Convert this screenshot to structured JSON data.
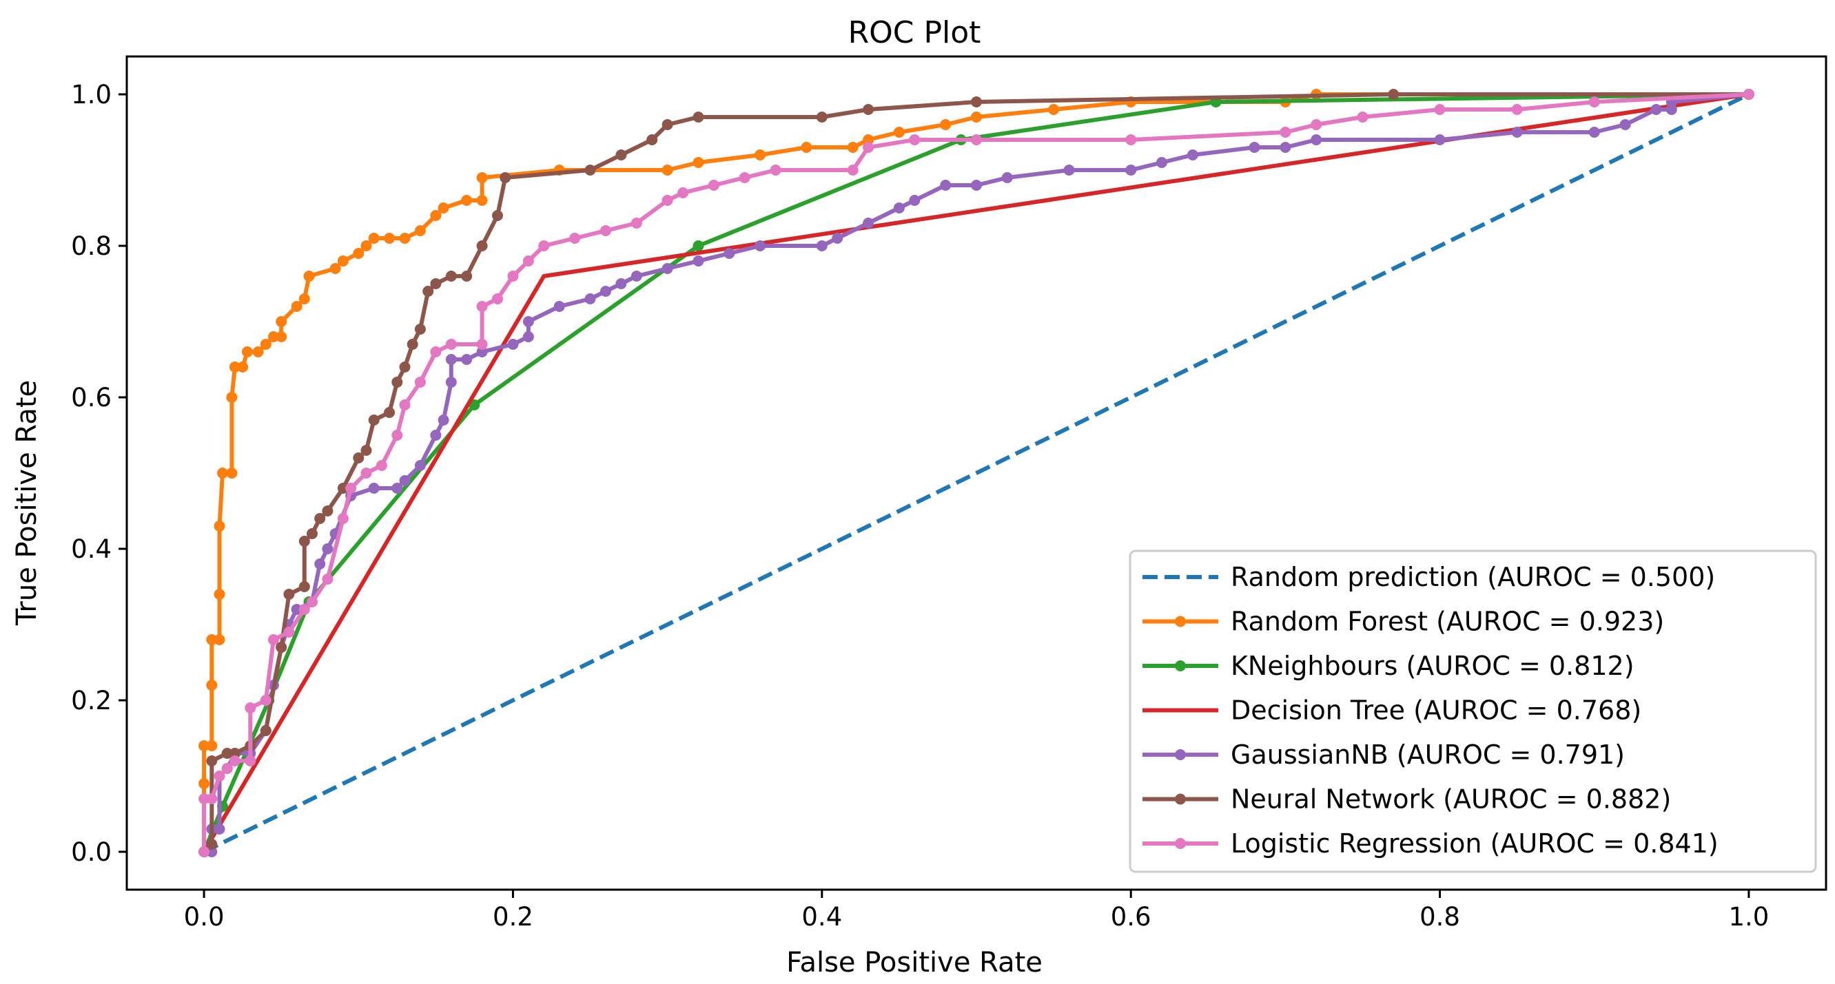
{
  "chart_data": {
    "type": "line",
    "title": "ROC Plot",
    "xlabel": "False Positive Rate",
    "ylabel": "True Positive Rate",
    "xlim": [
      -0.05,
      1.05
    ],
    "ylim": [
      -0.05,
      1.05
    ],
    "xticks": [
      "0.0",
      "0.2",
      "0.4",
      "0.6",
      "0.8",
      "1.0"
    ],
    "yticks": [
      "0.0",
      "0.2",
      "0.4",
      "0.6",
      "0.8",
      "1.0"
    ],
    "legend_position": "bottom-right",
    "series": [
      {
        "name": "Random prediction (AUROC = 0.500)",
        "color": "#1f77b4",
        "dashed": true,
        "markers": false,
        "points": [
          [
            0,
            0
          ],
          [
            1,
            1
          ]
        ]
      },
      {
        "name": "Random Forest (AUROC = 0.923)",
        "color": "#ff7f0e",
        "dashed": false,
        "markers": true,
        "points": [
          [
            0,
            0
          ],
          [
            0,
            0.09
          ],
          [
            0,
            0.14
          ],
          [
            0.005,
            0.14
          ],
          [
            0.005,
            0.22
          ],
          [
            0.005,
            0.28
          ],
          [
            0.01,
            0.28
          ],
          [
            0.01,
            0.34
          ],
          [
            0.01,
            0.43
          ],
          [
            0.012,
            0.5
          ],
          [
            0.018,
            0.5
          ],
          [
            0.018,
            0.6
          ],
          [
            0.02,
            0.64
          ],
          [
            0.025,
            0.64
          ],
          [
            0.028,
            0.66
          ],
          [
            0.035,
            0.66
          ],
          [
            0.04,
            0.67
          ],
          [
            0.045,
            0.68
          ],
          [
            0.05,
            0.68
          ],
          [
            0.05,
            0.7
          ],
          [
            0.06,
            0.72
          ],
          [
            0.065,
            0.73
          ],
          [
            0.068,
            0.76
          ],
          [
            0.085,
            0.77
          ],
          [
            0.09,
            0.78
          ],
          [
            0.1,
            0.79
          ],
          [
            0.105,
            0.8
          ],
          [
            0.11,
            0.81
          ],
          [
            0.12,
            0.81
          ],
          [
            0.13,
            0.81
          ],
          [
            0.14,
            0.82
          ],
          [
            0.15,
            0.84
          ],
          [
            0.155,
            0.85
          ],
          [
            0.17,
            0.86
          ],
          [
            0.18,
            0.86
          ],
          [
            0.18,
            0.89
          ],
          [
            0.23,
            0.9
          ],
          [
            0.3,
            0.9
          ],
          [
            0.32,
            0.91
          ],
          [
            0.36,
            0.92
          ],
          [
            0.39,
            0.93
          ],
          [
            0.42,
            0.93
          ],
          [
            0.43,
            0.94
          ],
          [
            0.45,
            0.95
          ],
          [
            0.48,
            0.96
          ],
          [
            0.5,
            0.97
          ],
          [
            0.55,
            0.98
          ],
          [
            0.6,
            0.99
          ],
          [
            0.7,
            0.99
          ],
          [
            0.72,
            1.0
          ],
          [
            1.0,
            1.0
          ]
        ]
      },
      {
        "name": "KNeighbours (AUROC = 0.812)",
        "color": "#2ca02c",
        "dashed": false,
        "markers": true,
        "points": [
          [
            0,
            0
          ],
          [
            0.012,
            0.06
          ],
          [
            0.042,
            0.2
          ],
          [
            0.068,
            0.33
          ],
          [
            0.175,
            0.59
          ],
          [
            0.32,
            0.8
          ],
          [
            0.49,
            0.94
          ],
          [
            0.655,
            0.99
          ],
          [
            1.0,
            1.0
          ]
        ]
      },
      {
        "name": "Decision Tree (AUROC = 0.768)",
        "color": "#d62728",
        "dashed": false,
        "markers": false,
        "points": [
          [
            0,
            0
          ],
          [
            0.01,
            0.035
          ],
          [
            0.22,
            0.76
          ],
          [
            1.0,
            1.0
          ]
        ]
      },
      {
        "name": "GaussianNB (AUROC = 0.791)",
        "color": "#9467bd",
        "dashed": false,
        "markers": true,
        "points": [
          [
            0,
            0
          ],
          [
            0.005,
            0
          ],
          [
            0.005,
            0.03
          ],
          [
            0.01,
            0.03
          ],
          [
            0.01,
            0.1
          ],
          [
            0.015,
            0.11
          ],
          [
            0.02,
            0.13
          ],
          [
            0.03,
            0.13
          ],
          [
            0.04,
            0.16
          ],
          [
            0.045,
            0.22
          ],
          [
            0.05,
            0.27
          ],
          [
            0.055,
            0.3
          ],
          [
            0.06,
            0.32
          ],
          [
            0.07,
            0.33
          ],
          [
            0.075,
            0.38
          ],
          [
            0.08,
            0.4
          ],
          [
            0.085,
            0.42
          ],
          [
            0.095,
            0.47
          ],
          [
            0.11,
            0.48
          ],
          [
            0.125,
            0.48
          ],
          [
            0.13,
            0.49
          ],
          [
            0.14,
            0.51
          ],
          [
            0.15,
            0.55
          ],
          [
            0.155,
            0.57
          ],
          [
            0.16,
            0.62
          ],
          [
            0.16,
            0.65
          ],
          [
            0.17,
            0.65
          ],
          [
            0.18,
            0.66
          ],
          [
            0.2,
            0.67
          ],
          [
            0.21,
            0.68
          ],
          [
            0.21,
            0.7
          ],
          [
            0.23,
            0.72
          ],
          [
            0.25,
            0.73
          ],
          [
            0.26,
            0.74
          ],
          [
            0.27,
            0.75
          ],
          [
            0.28,
            0.76
          ],
          [
            0.3,
            0.77
          ],
          [
            0.32,
            0.78
          ],
          [
            0.34,
            0.79
          ],
          [
            0.36,
            0.8
          ],
          [
            0.4,
            0.8
          ],
          [
            0.41,
            0.81
          ],
          [
            0.43,
            0.83
          ],
          [
            0.45,
            0.85
          ],
          [
            0.46,
            0.86
          ],
          [
            0.48,
            0.88
          ],
          [
            0.5,
            0.88
          ],
          [
            0.52,
            0.89
          ],
          [
            0.56,
            0.9
          ],
          [
            0.6,
            0.9
          ],
          [
            0.62,
            0.91
          ],
          [
            0.64,
            0.92
          ],
          [
            0.68,
            0.93
          ],
          [
            0.7,
            0.93
          ],
          [
            0.72,
            0.94
          ],
          [
            0.8,
            0.94
          ],
          [
            0.85,
            0.95
          ],
          [
            0.9,
            0.95
          ],
          [
            0.92,
            0.96
          ],
          [
            0.94,
            0.98
          ],
          [
            0.95,
            0.98
          ],
          [
            0.95,
            0.99
          ],
          [
            1.0,
            1.0
          ]
        ]
      },
      {
        "name": "Neural Network (AUROC = 0.882)",
        "color": "#8c564b",
        "dashed": false,
        "markers": true,
        "points": [
          [
            0,
            0
          ],
          [
            0.005,
            0.01
          ],
          [
            0.005,
            0.12
          ],
          [
            0.015,
            0.13
          ],
          [
            0.02,
            0.13
          ],
          [
            0.03,
            0.14
          ],
          [
            0.04,
            0.16
          ],
          [
            0.05,
            0.27
          ],
          [
            0.055,
            0.34
          ],
          [
            0.065,
            0.35
          ],
          [
            0.065,
            0.41
          ],
          [
            0.07,
            0.42
          ],
          [
            0.075,
            0.44
          ],
          [
            0.08,
            0.45
          ],
          [
            0.09,
            0.48
          ],
          [
            0.1,
            0.52
          ],
          [
            0.105,
            0.53
          ],
          [
            0.11,
            0.57
          ],
          [
            0.12,
            0.58
          ],
          [
            0.125,
            0.62
          ],
          [
            0.13,
            0.64
          ],
          [
            0.135,
            0.67
          ],
          [
            0.14,
            0.69
          ],
          [
            0.145,
            0.74
          ],
          [
            0.15,
            0.75
          ],
          [
            0.16,
            0.76
          ],
          [
            0.17,
            0.76
          ],
          [
            0.18,
            0.8
          ],
          [
            0.19,
            0.84
          ],
          [
            0.195,
            0.89
          ],
          [
            0.25,
            0.9
          ],
          [
            0.27,
            0.92
          ],
          [
            0.29,
            0.94
          ],
          [
            0.3,
            0.96
          ],
          [
            0.32,
            0.97
          ],
          [
            0.4,
            0.97
          ],
          [
            0.43,
            0.98
          ],
          [
            0.5,
            0.99
          ],
          [
            0.77,
            1.0
          ],
          [
            1.0,
            1.0
          ]
        ]
      },
      {
        "name": "Logistic Regression (AUROC = 0.841)",
        "color": "#e377c2",
        "dashed": false,
        "markers": true,
        "points": [
          [
            0,
            0
          ],
          [
            0,
            0.07
          ],
          [
            0.005,
            0.07
          ],
          [
            0.01,
            0.1
          ],
          [
            0.015,
            0.11
          ],
          [
            0.02,
            0.12
          ],
          [
            0.03,
            0.12
          ],
          [
            0.03,
            0.19
          ],
          [
            0.04,
            0.2
          ],
          [
            0.045,
            0.28
          ],
          [
            0.055,
            0.29
          ],
          [
            0.065,
            0.32
          ],
          [
            0.07,
            0.33
          ],
          [
            0.08,
            0.36
          ],
          [
            0.09,
            0.44
          ],
          [
            0.095,
            0.48
          ],
          [
            0.105,
            0.5
          ],
          [
            0.115,
            0.51
          ],
          [
            0.125,
            0.55
          ],
          [
            0.13,
            0.59
          ],
          [
            0.14,
            0.62
          ],
          [
            0.15,
            0.66
          ],
          [
            0.16,
            0.67
          ],
          [
            0.18,
            0.67
          ],
          [
            0.18,
            0.72
          ],
          [
            0.19,
            0.73
          ],
          [
            0.2,
            0.76
          ],
          [
            0.21,
            0.78
          ],
          [
            0.22,
            0.8
          ],
          [
            0.24,
            0.81
          ],
          [
            0.26,
            0.82
          ],
          [
            0.28,
            0.83
          ],
          [
            0.3,
            0.86
          ],
          [
            0.31,
            0.87
          ],
          [
            0.33,
            0.88
          ],
          [
            0.35,
            0.89
          ],
          [
            0.37,
            0.9
          ],
          [
            0.42,
            0.9
          ],
          [
            0.43,
            0.93
          ],
          [
            0.46,
            0.94
          ],
          [
            0.5,
            0.94
          ],
          [
            0.6,
            0.94
          ],
          [
            0.7,
            0.95
          ],
          [
            0.72,
            0.96
          ],
          [
            0.75,
            0.97
          ],
          [
            0.8,
            0.98
          ],
          [
            0.85,
            0.98
          ],
          [
            0.9,
            0.99
          ],
          [
            1.0,
            1.0
          ]
        ]
      }
    ]
  }
}
